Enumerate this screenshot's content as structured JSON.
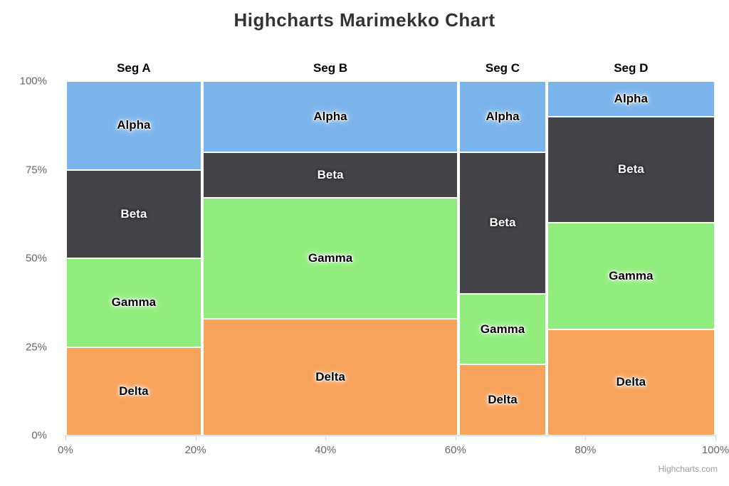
{
  "title": "Highcharts Marimekko Chart",
  "credit_label": "Highcharts.com",
  "colors": {
    "title_text": "#333333",
    "axis_label_text": "#666666",
    "axis_line": "#ccd6eb",
    "segment_label_text": "#000000",
    "credit_text": "#999999",
    "background": "#ffffff"
  },
  "chart_data": {
    "type": "marimekko",
    "title": "Highcharts Marimekko Chart",
    "series": [
      {
        "name": "Alpha",
        "color": "#7cb5ec"
      },
      {
        "name": "Beta",
        "color": "#434348"
      },
      {
        "name": "Gamma",
        "color": "#90ed7d"
      },
      {
        "name": "Delta",
        "color": "#f7a35c"
      }
    ],
    "series_order_top_to_bottom": [
      "Alpha",
      "Beta",
      "Gamma",
      "Delta"
    ],
    "segments": [
      {
        "label": "Seg A",
        "width_pct": 21.0,
        "values_pct": [
          25,
          25,
          25,
          25
        ]
      },
      {
        "label": "Seg B",
        "width_pct": 39.5,
        "values_pct": [
          20,
          13,
          34,
          33
        ]
      },
      {
        "label": "Seg C",
        "width_pct": 13.5,
        "values_pct": [
          20,
          40,
          20,
          20
        ]
      },
      {
        "label": "Seg D",
        "width_pct": 26.0,
        "values_pct": [
          10,
          30,
          30,
          30
        ]
      }
    ],
    "yaxis": {
      "tick_labels": [
        "0%",
        "25%",
        "50%",
        "75%",
        "100%"
      ],
      "range": [
        0,
        100
      ]
    },
    "xaxis": {
      "tick_labels": [
        "0%",
        "20%",
        "40%",
        "60%",
        "80%",
        "100%"
      ],
      "range": [
        0,
        100
      ]
    },
    "legend": "none",
    "grid": "off"
  }
}
